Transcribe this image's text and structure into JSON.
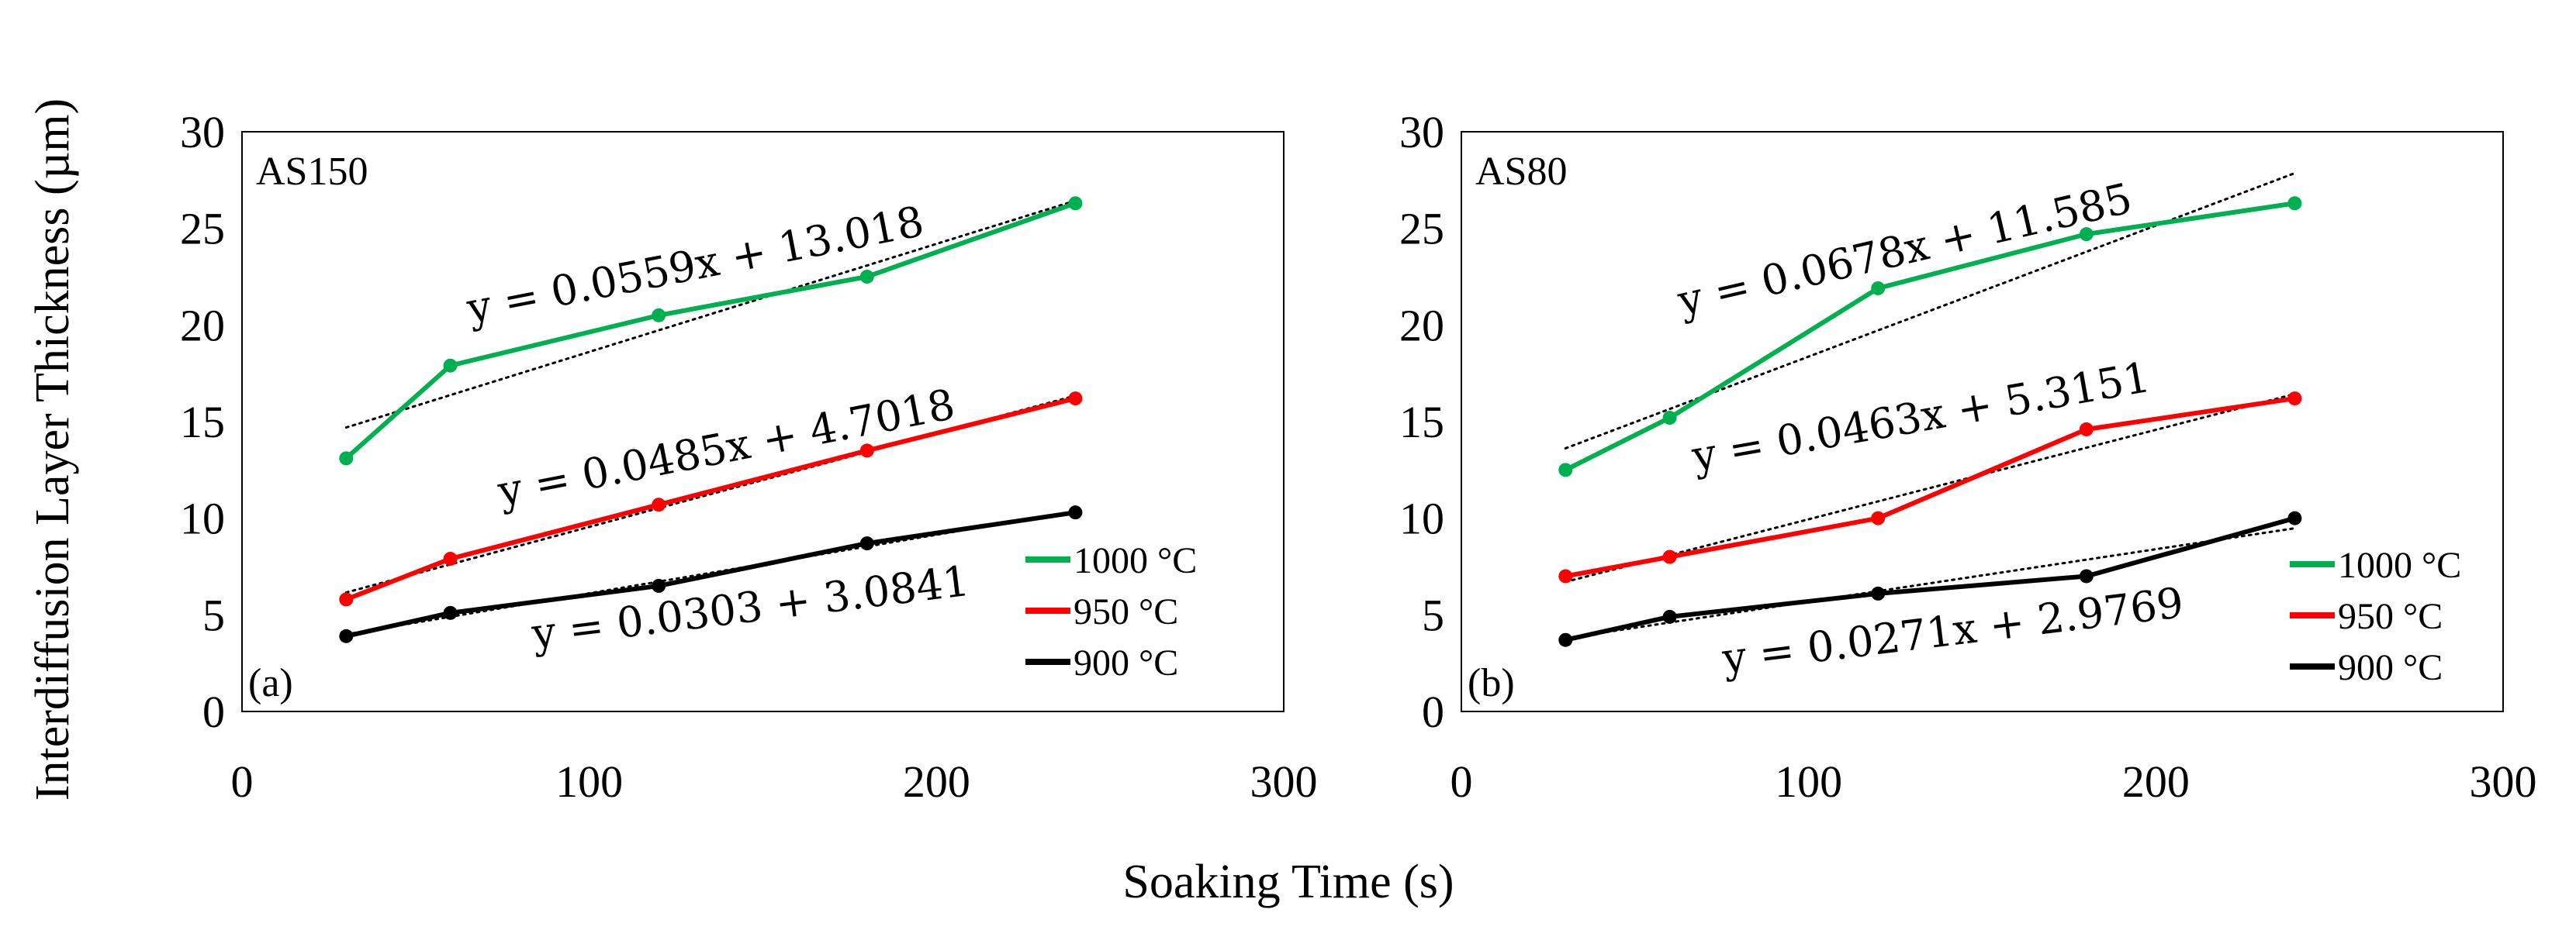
{
  "chart_data": [
    {
      "type": "line",
      "panel_label": "(a)",
      "title": "AS150",
      "x": [
        30,
        60,
        120,
        180,
        240
      ],
      "xlim": [
        0,
        300
      ],
      "ylim": [
        0,
        30
      ],
      "xticks": [
        "0",
        "100",
        "200",
        "300"
      ],
      "yticks": [
        "0",
        "5",
        "10",
        "15",
        "20",
        "25",
        "30"
      ],
      "legend_position": "bottom-right",
      "series": [
        {
          "name": "1000 °C",
          "color": "#00b050",
          "values": [
            13.1,
            17.9,
            20.5,
            22.5,
            26.3
          ],
          "trendline": {
            "slope": 0.0559,
            "intercept": 13.018,
            "label": "y = 0.0559x + 13.018"
          }
        },
        {
          "name": "950 °C",
          "color": "#ff0000",
          "values": [
            5.8,
            7.9,
            10.7,
            13.5,
            16.2
          ],
          "trendline": {
            "slope": 0.0485,
            "intercept": 4.7018,
            "label": "y = 0.0485x + 4.7018"
          }
        },
        {
          "name": "900 °C",
          "color": "#000000",
          "values": [
            3.9,
            5.1,
            6.5,
            8.7,
            10.3
          ],
          "trendline": {
            "slope": 0.0303,
            "intercept": 3.0841,
            "label": "y = 0.0303 + 3.0841"
          }
        }
      ]
    },
    {
      "type": "line",
      "panel_label": "(b)",
      "title": "AS80",
      "x": [
        30,
        60,
        120,
        180,
        240
      ],
      "xlim": [
        0,
        300
      ],
      "ylim": [
        0,
        30
      ],
      "xticks": [
        "0",
        "100",
        "200",
        "300"
      ],
      "yticks": [
        "0",
        "5",
        "10",
        "15",
        "20",
        "25",
        "30"
      ],
      "legend_position": "bottom-right",
      "series": [
        {
          "name": "1000 °C",
          "color": "#00b050",
          "values": [
            12.5,
            15.2,
            21.9,
            24.7,
            26.3
          ],
          "trendline": {
            "slope": 0.0678,
            "intercept": 11.585,
            "label": "y = 0.0678x + 11.585"
          }
        },
        {
          "name": "950 °C",
          "color": "#ff0000",
          "values": [
            7.0,
            8.0,
            10.0,
            14.6,
            16.2
          ],
          "trendline": {
            "slope": 0.0463,
            "intercept": 5.3151,
            "label": "y = 0.0463x + 5.3151"
          }
        },
        {
          "name": "900 °C",
          "color": "#000000",
          "values": [
            3.7,
            4.9,
            6.1,
            7.0,
            10.0
          ],
          "trendline": {
            "slope": 0.0271,
            "intercept": 2.9769,
            "label": "y = 0.0271x + 2.9769"
          }
        }
      ]
    }
  ],
  "axes": {
    "ylabel": "Interdiffusion Layer Thickness (µm)",
    "xlabel": "Soaking Time (s)"
  }
}
